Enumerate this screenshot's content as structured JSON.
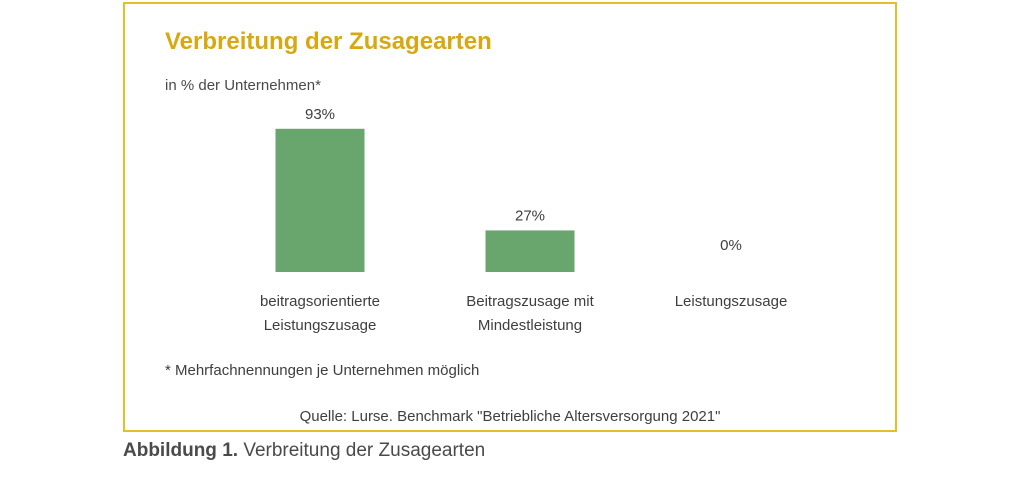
{
  "figure": {
    "title": "Verbreitung der Zusagearten",
    "subtitle": "in % der Unternehmen*",
    "footnote": "* Mehrfachnennungen je Unternehmen möglich",
    "source": "Quelle: Lurse. Benchmark \"Betriebliche Altersversorgung 2021\"",
    "caption_label": "Abbildung 1.",
    "caption_text": " Verbreitung der Zusagearten"
  },
  "colors": {
    "bar": "#69a66e",
    "title": "#d8a812",
    "frame": "#e3c02a"
  },
  "chart_data": {
    "type": "bar",
    "title": "Verbreitung der Zusagearten",
    "ylabel": "in % der Unternehmen*",
    "categories": [
      [
        "beitragsorientierte",
        "Leistungszusage"
      ],
      [
        "Beitragszusage mit",
        "Mindestleistung"
      ],
      [
        "Leistungszusage"
      ]
    ],
    "values": [
      93,
      27,
      0
    ],
    "value_labels": [
      "93%",
      "27%",
      "0%"
    ],
    "ylim": [
      0,
      100
    ],
    "grid": false,
    "legend": "none"
  }
}
